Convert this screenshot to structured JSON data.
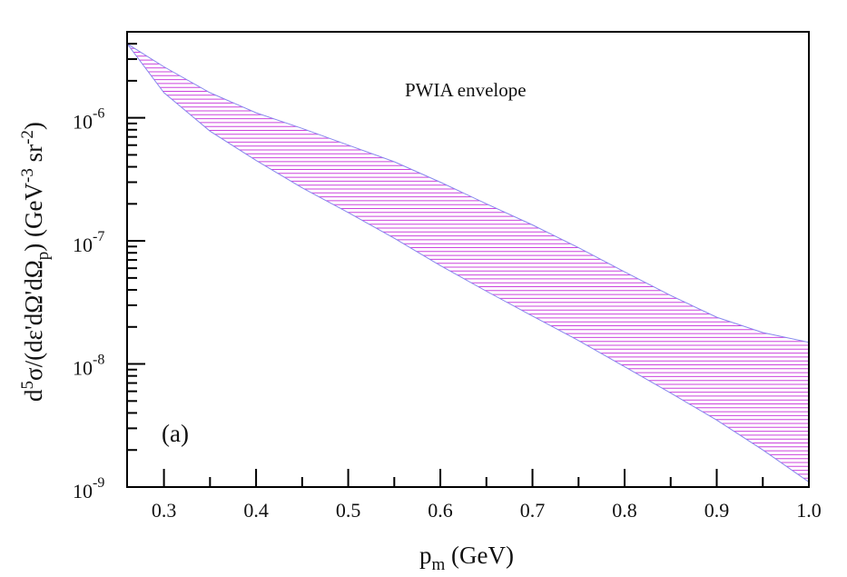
{
  "chart_data": {
    "type": "area",
    "panel_label": "(a)",
    "annotation": "PWIA envelope",
    "xlabel": {
      "main": "p",
      "sub": "m",
      "unit": " (GeV)"
    },
    "ylabel": {
      "parts": [
        {
          "t": "d",
          "s": "n"
        },
        {
          "t": "5",
          "s": "sup"
        },
        {
          "t": "σ/(dε'dΩ'dΩ",
          "s": "n"
        },
        {
          "t": "p",
          "s": "sub"
        },
        {
          "t": ") (GeV",
          "s": "n"
        },
        {
          "t": "-3",
          "s": "sup"
        },
        {
          "t": " sr",
          "s": "n"
        },
        {
          "t": "-2",
          "s": "sup"
        },
        {
          "t": ")",
          "s": "n"
        }
      ]
    },
    "x_scale": "linear",
    "y_scale": "log",
    "xlim": [
      0.26,
      1.0
    ],
    "ylim": [
      1e-09,
      5e-06
    ],
    "x_ticks": [
      0.3,
      0.4,
      0.5,
      0.6,
      0.7,
      0.8,
      0.9,
      1.0
    ],
    "x_tick_labels": [
      "0.3",
      "0.4",
      "0.5",
      "0.6",
      "0.7",
      "0.8",
      "0.9",
      "1.0"
    ],
    "y_ticks": [
      1e-09,
      1e-08,
      1e-07,
      1e-06
    ],
    "y_tick_labels": [
      {
        "base": "10",
        "exp": "-9"
      },
      {
        "base": "10",
        "exp": "-8"
      },
      {
        "base": "10",
        "exp": "-7"
      },
      {
        "base": "10",
        "exp": "-6"
      }
    ],
    "grid": false,
    "band_color": "#cc44dd",
    "band_edge_color": "#8888ee",
    "band": {
      "x": [
        0.26,
        0.3,
        0.35,
        0.4,
        0.45,
        0.5,
        0.55,
        0.6,
        0.65,
        0.7,
        0.75,
        0.8,
        0.85,
        0.9,
        0.95,
        1.0
      ],
      "upper": [
        4e-06,
        2.6e-06,
        1.6e-06,
        1.1e-06,
        8.2e-07,
        6e-07,
        4.4e-07,
        3e-07,
        2e-07,
        1.35e-07,
        8.8e-08,
        5.6e-08,
        3.6e-08,
        2.4e-08,
        1.8e-08,
        1.5e-08
      ],
      "lower": [
        4e-06,
        1.6e-06,
        7.8e-07,
        4.5e-07,
        2.7e-07,
        1.7e-07,
        1.05e-07,
        6.3e-08,
        3.9e-08,
        2.45e-08,
        1.55e-08,
        9.5e-09,
        5.8e-09,
        3.5e-09,
        2e-09,
        1.1e-09
      ]
    }
  }
}
